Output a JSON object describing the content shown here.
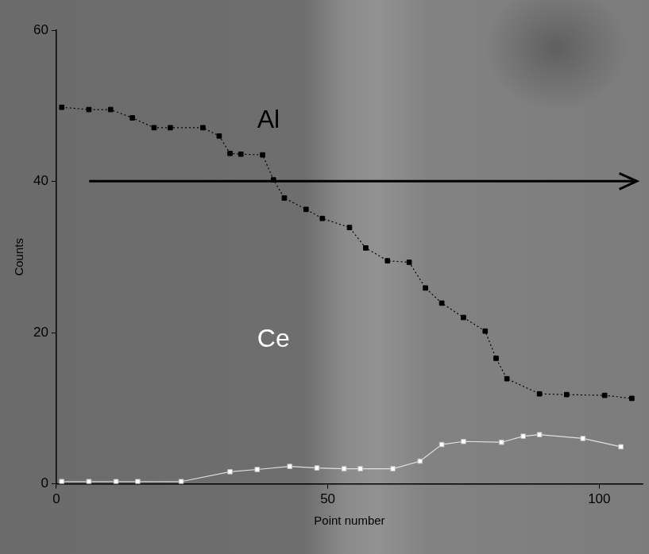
{
  "chart_data": {
    "type": "line",
    "x_label": "Point number",
    "y_label": "Counts",
    "xlim": [
      0,
      108
    ],
    "xticks": [
      0,
      50,
      100
    ],
    "ylim": [
      0,
      60
    ],
    "yticks": [
      0,
      20,
      40,
      60
    ],
    "grid": false,
    "series": [
      {
        "name": "Al",
        "color": "#000000",
        "marker": "square",
        "line_style": "dotted",
        "x": [
          1,
          6,
          10,
          14,
          18,
          21,
          27,
          30,
          32,
          34,
          38,
          40,
          42,
          46,
          49,
          54,
          57,
          61,
          65,
          68,
          71,
          75,
          79,
          81,
          83,
          89,
          94,
          101,
          106
        ],
        "values": [
          49.8,
          49.5,
          49.5,
          48.4,
          47.1,
          47.1,
          47.1,
          46.0,
          43.7,
          43.6,
          43.5,
          40.2,
          37.8,
          36.3,
          35.1,
          33.9,
          31.2,
          29.5,
          29.3,
          25.9,
          23.9,
          22.0,
          20.2,
          16.6,
          13.9,
          11.9,
          11.8,
          11.7,
          11.3
        ]
      },
      {
        "name": "Ce",
        "color": "#ffffff",
        "marker": "square",
        "line_style": "solid",
        "x": [
          1,
          6,
          11,
          15,
          23,
          32,
          37,
          43,
          48,
          53,
          56,
          62,
          67,
          71,
          75,
          82,
          86,
          89,
          97,
          104
        ],
        "values": [
          0.3,
          0.3,
          0.3,
          0.3,
          0.3,
          1.6,
          1.9,
          2.3,
          2.1,
          2.0,
          2.0,
          2.0,
          3.0,
          5.2,
          5.6,
          5.5,
          6.3,
          6.5,
          6.0,
          4.9
        ]
      }
    ],
    "annotations": [
      {
        "text": "Al",
        "x": 37,
        "y": 48,
        "color": "#000000"
      },
      {
        "text": "Ce",
        "x": 37,
        "y": 19,
        "color": "#ffffff"
      }
    ]
  }
}
